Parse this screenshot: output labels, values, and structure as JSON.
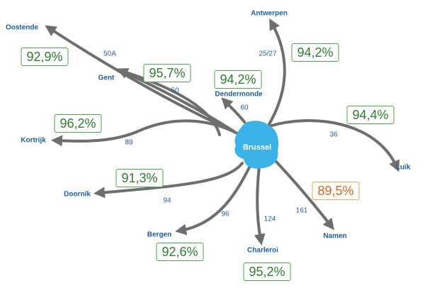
{
  "hub": {
    "name": "Brussel",
    "color": "#3bb3e8"
  },
  "colors": {
    "route": "#6e6e6e",
    "good": "#2e7d2e",
    "warn": "#e06414",
    "city_text": "#1f5fa3"
  },
  "routes": [
    {
      "city": "Oostende",
      "line": "50A",
      "punctuality": "92,9%",
      "status": "good"
    },
    {
      "city": "Gent",
      "line": "50",
      "punctuality": "95,7%",
      "status": "good"
    },
    {
      "city": "Antwerpen",
      "line": "25/27",
      "punctuality": "94,2%",
      "status": "good"
    },
    {
      "city": "Dendermonde",
      "line": "60",
      "punctuality": "94,2%",
      "status": "good"
    },
    {
      "city": "Kortrijk",
      "line": "89",
      "punctuality": "96,2%",
      "status": "good"
    },
    {
      "city": "Luik",
      "line": "36",
      "punctuality": "94,4%",
      "status": "good"
    },
    {
      "city": "Doornik",
      "line": "94",
      "punctuality": "91,3%",
      "status": "good"
    },
    {
      "city": "Namen",
      "line": "161",
      "punctuality": "89,5%",
      "status": "warn"
    },
    {
      "city": "Bergen",
      "line": "96",
      "punctuality": "92,6%",
      "status": "good"
    },
    {
      "city": "Charleroi",
      "line": "124",
      "punctuality": "95,2%",
      "status": "good"
    }
  ]
}
